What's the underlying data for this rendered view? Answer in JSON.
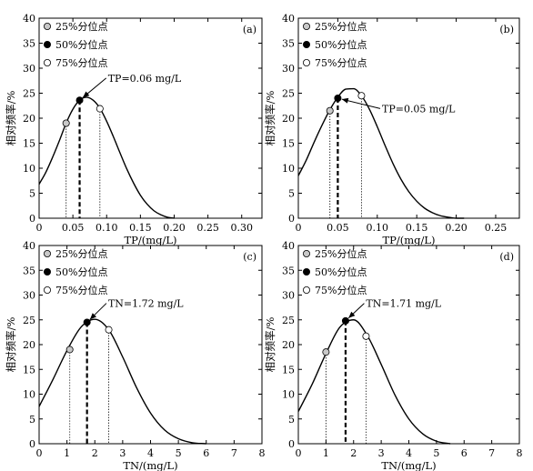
{
  "chart_data": [
    {
      "type": "line",
      "panel_label": "(a)",
      "xlabel": "TP/(mg/L)",
      "ylabel": "相对频率/%",
      "xlim": [
        0,
        0.33
      ],
      "ylim": [
        0,
        40
      ],
      "xticks": [
        0,
        0.05,
        0.1,
        0.15,
        0.2,
        0.25,
        0.3
      ],
      "xtick_labels": [
        "0",
        "0.05",
        "0.10",
        "0.15",
        "0.20",
        "0.25",
        "0.30"
      ],
      "yticks": [
        0,
        5,
        10,
        15,
        20,
        25,
        30,
        35,
        40
      ],
      "ytick_labels": [
        "0",
        "5",
        "10",
        "15",
        "20",
        "25",
        "30",
        "35",
        "40"
      ],
      "legend": [
        "25%分位点",
        "50%分位点",
        "75%分位点"
      ],
      "legend_position": "top-left",
      "curve": {
        "x": [
          0,
          0.01,
          0.02,
          0.03,
          0.04,
          0.05,
          0.06,
          0.07,
          0.08,
          0.09,
          0.1,
          0.11,
          0.12,
          0.13,
          0.14,
          0.15,
          0.16,
          0.17,
          0.18,
          0.19,
          0.2
        ],
        "y": [
          6.8,
          9.2,
          12.2,
          15.5,
          19,
          21.8,
          23.6,
          24.2,
          23.6,
          22,
          19.4,
          16.3,
          13,
          9.8,
          7,
          4.6,
          2.8,
          1.5,
          0.7,
          0.2,
          0
        ]
      },
      "quantiles": [
        {
          "name": "25%分位点",
          "x": 0.04,
          "y": 19
        },
        {
          "name": "50%分位点",
          "x": 0.06,
          "y": 23.6
        },
        {
          "name": "75%分位点",
          "x": 0.09,
          "y": 21.9
        }
      ],
      "annotation": {
        "text": "TP=0.06 mg/L",
        "x": 0.06,
        "y": 23.6,
        "text_x": 0.102,
        "text_y": 27.3
      }
    },
    {
      "type": "line",
      "panel_label": "(b)",
      "xlabel": "TP/(mg/L)",
      "ylabel": "相对频率/%",
      "xlim": [
        0,
        0.28
      ],
      "ylim": [
        0,
        40
      ],
      "xticks": [
        0,
        0.05,
        0.1,
        0.15,
        0.2,
        0.25
      ],
      "xtick_labels": [
        "0",
        "0.05",
        "0.10",
        "0.15",
        "0.20",
        "0.25"
      ],
      "yticks": [
        0,
        5,
        10,
        15,
        20,
        25,
        30,
        35,
        40
      ],
      "ytick_labels": [
        "0",
        "5",
        "10",
        "15",
        "20",
        "25",
        "30",
        "35",
        "40"
      ],
      "legend": [
        "25%分位点",
        "50%分位点",
        "75%分位点"
      ],
      "legend_position": "top-left",
      "curve": {
        "x": [
          0,
          0.01,
          0.02,
          0.03,
          0.04,
          0.05,
          0.06,
          0.07,
          0.08,
          0.09,
          0.1,
          0.11,
          0.12,
          0.13,
          0.14,
          0.15,
          0.16,
          0.17,
          0.18,
          0.19,
          0.2,
          0.21
        ],
        "y": [
          8.5,
          11.6,
          15.2,
          18.6,
          21.7,
          24.2,
          25.8,
          25.9,
          24.5,
          21.8,
          18.3,
          14.5,
          10.9,
          7.8,
          5.3,
          3.4,
          2,
          1.1,
          0.5,
          0.2,
          0,
          0
        ]
      },
      "quantiles": [
        {
          "name": "25%分位点",
          "x": 0.04,
          "y": 21.5
        },
        {
          "name": "50%分位点",
          "x": 0.05,
          "y": 24
        },
        {
          "name": "75%分位点",
          "x": 0.08,
          "y": 24.5
        }
      ],
      "annotation": {
        "text": "TP=0.05 mg/L",
        "x": 0.05,
        "y": 24,
        "text_x": 0.106,
        "text_y": 21.2
      }
    },
    {
      "type": "line",
      "panel_label": "(c)",
      "xlabel": "TN/(mg/L)",
      "ylabel": "相对频率/%",
      "xlim": [
        0,
        8
      ],
      "ylim": [
        0,
        40
      ],
      "xticks": [
        0,
        1,
        2,
        3,
        4,
        5,
        6,
        7,
        8
      ],
      "xtick_labels": [
        "0",
        "1",
        "2",
        "3",
        "4",
        "5",
        "6",
        "7",
        "8"
      ],
      "yticks": [
        0,
        5,
        10,
        15,
        20,
        25,
        30,
        35,
        40
      ],
      "ytick_labels": [
        "0",
        "5",
        "10",
        "15",
        "20",
        "25",
        "30",
        "35",
        "40"
      ],
      "legend": [
        "25%分位点",
        "50%分位点",
        "75%分位点"
      ],
      "legend_position": "top-left",
      "curve": {
        "x": [
          0,
          0.5,
          1,
          1.5,
          2,
          2.5,
          3,
          3.5,
          4,
          4.5,
          5,
          5.5,
          6
        ],
        "y": [
          7.5,
          13,
          18.8,
          23.5,
          25.1,
          23,
          17.5,
          11.3,
          6.2,
          2.8,
          1,
          0.2,
          0
        ]
      },
      "quantiles": [
        {
          "name": "25%分位点",
          "x": 1.1,
          "y": 19
        },
        {
          "name": "50%分位点",
          "x": 1.72,
          "y": 24.5
        },
        {
          "name": "75%分位点",
          "x": 2.5,
          "y": 23
        }
      ],
      "annotation": {
        "text": "TN=1.72 mg/L",
        "x": 1.72,
        "y": 24.5,
        "text_x": 2.48,
        "text_y": 27.6
      }
    },
    {
      "type": "line",
      "panel_label": "(d)",
      "xlabel": "TN/(mg/L)",
      "ylabel": "相对频率/%",
      "xlim": [
        0,
        8
      ],
      "ylim": [
        0,
        40
      ],
      "xticks": [
        0,
        1,
        2,
        3,
        4,
        5,
        6,
        7,
        8
      ],
      "xtick_labels": [
        "0",
        "1",
        "2",
        "3",
        "4",
        "5",
        "6",
        "7",
        "8"
      ],
      "yticks": [
        0,
        5,
        10,
        15,
        20,
        25,
        30,
        35,
        40
      ],
      "ytick_labels": [
        "0",
        "5",
        "10",
        "15",
        "20",
        "25",
        "30",
        "35",
        "40"
      ],
      "legend": [
        "25%分位点",
        "50%分位点",
        "75%分位点"
      ],
      "legend_position": "top-left",
      "curve": {
        "x": [
          0,
          0.5,
          1,
          1.5,
          2,
          2.5,
          3,
          3.5,
          4,
          4.5,
          5,
          5.5
        ],
        "y": [
          6.5,
          12,
          18.2,
          23.5,
          25,
          21.8,
          16,
          9.8,
          5,
          2,
          0.5,
          0
        ]
      },
      "quantiles": [
        {
          "name": "25%分位点",
          "x": 1.0,
          "y": 18.5
        },
        {
          "name": "50%分位点",
          "x": 1.71,
          "y": 24.8
        },
        {
          "name": "75%分位点",
          "x": 2.45,
          "y": 21.7
        }
      ],
      "annotation": {
        "text": "TN=1.71 mg/L",
        "x": 1.71,
        "y": 24.8,
        "text_x": 2.45,
        "text_y": 27.6
      }
    }
  ],
  "colors": {
    "q25_fill": "#c8c8c8",
    "q50_fill": "#000000",
    "q75_fill": "#ffffff",
    "line": "#000000"
  }
}
